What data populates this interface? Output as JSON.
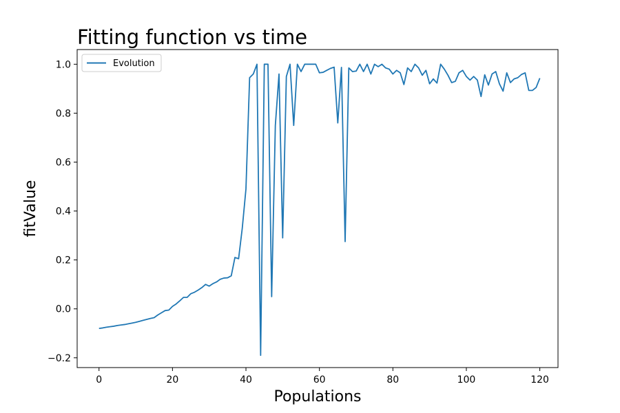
{
  "chart_data": {
    "type": "line",
    "title": "Fitting function vs time",
    "xlabel": "Populations",
    "ylabel": "fitValue",
    "xlim": [
      -5.95,
      124.95
    ],
    "ylim": [
      -0.24,
      1.06
    ],
    "xticks": [
      0,
      20,
      40,
      60,
      80,
      100,
      120
    ],
    "yticks": [
      -0.2,
      0.0,
      0.2,
      0.4,
      0.6,
      0.8,
      1.0
    ],
    "xtick_labels": [
      "0",
      "20",
      "40",
      "60",
      "80",
      "100",
      "120"
    ],
    "ytick_labels": [
      "−0.2",
      "0.0",
      "0.2",
      "0.4",
      "0.6",
      "0.8",
      "1.0"
    ],
    "grid": false,
    "legend_position": "top-left",
    "series": [
      {
        "name": "Evolution",
        "color": "#1f77b4",
        "values": [
          -0.08,
          -0.078,
          -0.075,
          -0.073,
          -0.071,
          -0.068,
          -0.066,
          -0.064,
          -0.061,
          -0.058,
          -0.055,
          -0.051,
          -0.047,
          -0.043,
          -0.039,
          -0.036,
          -0.025,
          -0.016,
          -0.007,
          -0.005,
          0.01,
          0.02,
          0.033,
          0.047,
          0.047,
          0.062,
          0.068,
          0.077,
          0.087,
          0.1,
          0.093,
          0.103,
          0.11,
          0.121,
          0.126,
          0.127,
          0.135,
          0.21,
          0.205,
          0.33,
          0.49,
          0.945,
          0.96,
          1.0,
          -0.19,
          1.0,
          1.0,
          0.05,
          0.75,
          0.96,
          0.29,
          0.95,
          1.0,
          0.75,
          1.0,
          0.97,
          1.0,
          1.0,
          1.0,
          1.0,
          0.965,
          0.967,
          0.975,
          0.983,
          0.988,
          0.76,
          0.987,
          0.275,
          0.985,
          0.97,
          0.972,
          1.0,
          0.97,
          1.0,
          0.96,
          1.0,
          0.99,
          1.0,
          0.985,
          0.98,
          0.96,
          0.975,
          0.965,
          0.917,
          0.985,
          0.97,
          1.0,
          0.985,
          0.955,
          0.975,
          0.92,
          0.94,
          0.923,
          1.0,
          0.98,
          0.955,
          0.925,
          0.93,
          0.965,
          0.975,
          0.95,
          0.935,
          0.95,
          0.935,
          0.868,
          0.957,
          0.915,
          0.96,
          0.97,
          0.92,
          0.89,
          0.965,
          0.925,
          0.94,
          0.945,
          0.958,
          0.965,
          0.893,
          0.893,
          0.905,
          0.943
        ]
      }
    ]
  }
}
